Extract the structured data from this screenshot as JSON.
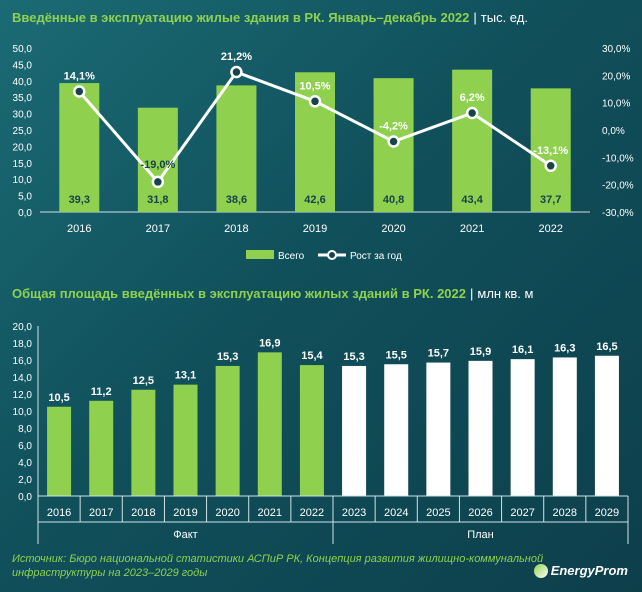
{
  "chart_data": [
    {
      "type": "bar",
      "title": "Введённые в эксплуатацию жилые здания в РК. Январь–декабрь 2022",
      "unit": "тыс. ед.",
      "categories": [
        "2016",
        "2017",
        "2018",
        "2019",
        "2020",
        "2021",
        "2022"
      ],
      "series": [
        {
          "name": "Всего",
          "type": "bar",
          "axis": "left",
          "color": "#8fd14f",
          "values": [
            39.3,
            31.8,
            38.6,
            42.6,
            40.8,
            43.4,
            37.7
          ],
          "labels": [
            "39,3",
            "31,8",
            "38,6",
            "42,6",
            "40,8",
            "43,4",
            "37,7"
          ]
        },
        {
          "name": "Рост за год",
          "type": "line",
          "axis": "right",
          "color": "#ffffff",
          "values": [
            14.1,
            -19.0,
            21.2,
            10.5,
            -4.2,
            6.2,
            -13.1
          ],
          "labels": [
            "14,1%",
            "-19,0%",
            "21,2%",
            "10,5%",
            "-4,2%",
            "6,2%",
            "-13,1%"
          ]
        }
      ],
      "ylim": [
        0,
        50
      ],
      "y2lim": [
        -30,
        30
      ],
      "yticks": [
        "0,0",
        "5,0",
        "10,0",
        "15,0",
        "20,0",
        "25,0",
        "30,0",
        "35,0",
        "40,0",
        "45,0",
        "50,0"
      ],
      "y2ticks": [
        "-30,0%",
        "-20,0%",
        "-10,0%",
        "0,0%",
        "10,0%",
        "20,0%",
        "30,0%"
      ],
      "legend": "bottom",
      "grid": false
    },
    {
      "type": "bar",
      "title": "Общая площадь введённых в эксплуатацию жилых зданий в РК. 2022",
      "unit": "млн кв. м",
      "categories": [
        "2016",
        "2017",
        "2018",
        "2019",
        "2020",
        "2021",
        "2022",
        "2023",
        "2024",
        "2025",
        "2026",
        "2027",
        "2028",
        "2029"
      ],
      "values": [
        10.5,
        11.2,
        12.5,
        13.1,
        15.3,
        16.9,
        15.4,
        15.3,
        15.5,
        15.7,
        15.9,
        16.1,
        16.3,
        16.5
      ],
      "labels": [
        "10,5",
        "11,2",
        "12,5",
        "13,1",
        "15,3",
        "16,9",
        "15,4",
        "15,3",
        "15,5",
        "15,7",
        "15,9",
        "16,1",
        "16,3",
        "16,5"
      ],
      "groups": [
        {
          "name": "Факт",
          "from": 0,
          "to": 6,
          "color": "#8fd14f"
        },
        {
          "name": "План",
          "from": 7,
          "to": 13,
          "color": "#ffffff"
        }
      ],
      "ylim": [
        0,
        20
      ],
      "yticks": [
        "0,0",
        "2,0",
        "4,0",
        "6,0",
        "8,0",
        "10,0",
        "12,0",
        "14,0",
        "16,0",
        "18,0",
        "20,0"
      ],
      "grid": false
    }
  ],
  "source": "Источник: Бюро национальной статистики АСПиР РК, Концепция развития жилищно-коммунальной инфраструктуры на 2023–2029 годы",
  "logo": "EnergyProm"
}
